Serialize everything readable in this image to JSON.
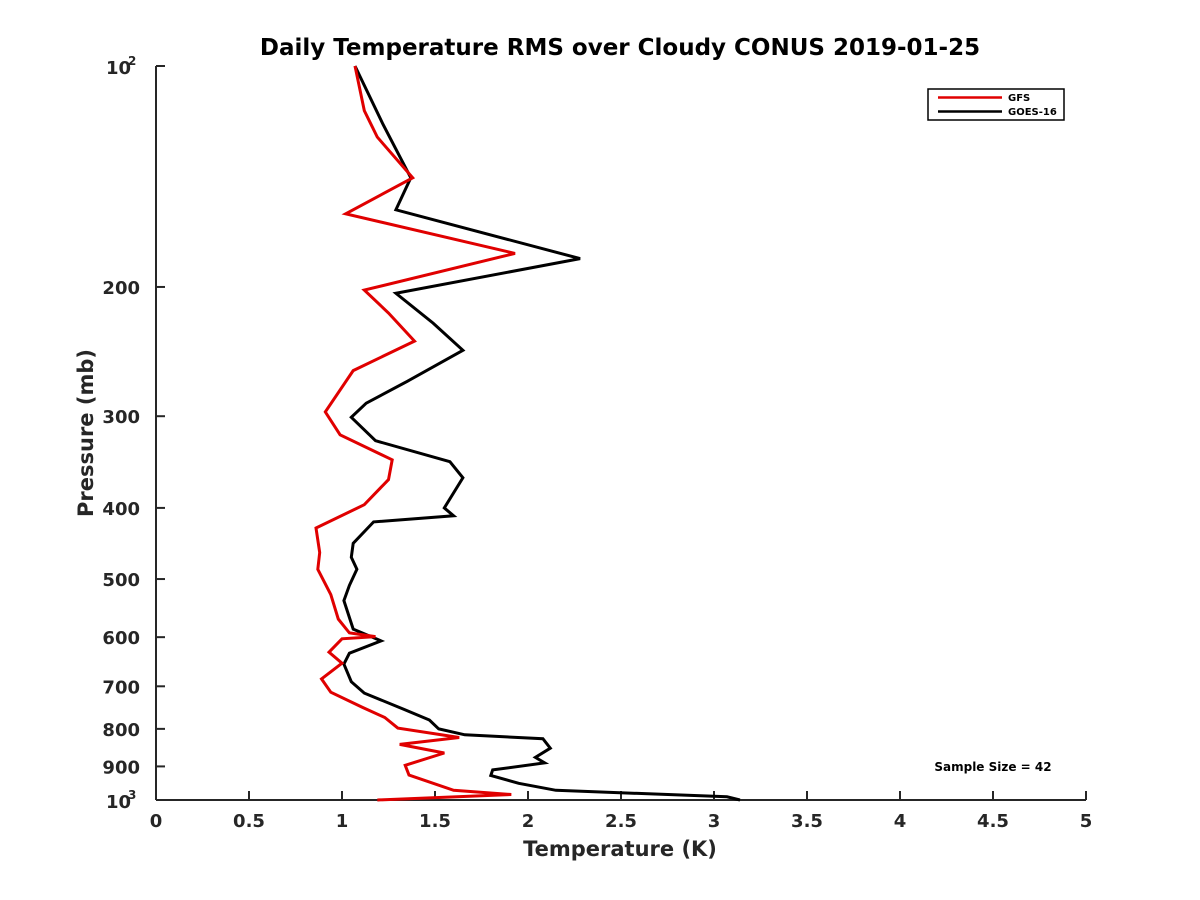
{
  "chart_data": {
    "type": "line",
    "title": "Daily Temperature RMS over Cloudy CONUS 2019-01-25",
    "xlabel": "Temperature (K)",
    "ylabel": "Pressure (mb)",
    "xlim": [
      0,
      5
    ],
    "ylim": [
      100,
      1000
    ],
    "y_scale": "log",
    "y_reversed": true,
    "grid": false,
    "legend_position": "top-right",
    "xticks": [
      "0",
      "0.5",
      "1",
      "1.5",
      "2",
      "2.5",
      "3",
      "3.5",
      "4",
      "4.5",
      "5"
    ],
    "yticks": [
      {
        "value": 100,
        "base": "10",
        "exp": "2"
      },
      {
        "value": 200,
        "label": "200"
      },
      {
        "value": 300,
        "label": "300"
      },
      {
        "value": 400,
        "label": "400"
      },
      {
        "value": 500,
        "label": "500"
      },
      {
        "value": 600,
        "label": "600"
      },
      {
        "value": 700,
        "label": "700"
      },
      {
        "value": 800,
        "label": "800"
      },
      {
        "value": 900,
        "label": "900"
      },
      {
        "value": 1000,
        "base": "10",
        "exp": "3"
      }
    ],
    "series": [
      {
        "name": "GFS",
        "color": "#e00000",
        "points": [
          [
            1.07,
            100
          ],
          [
            1.12,
            115
          ],
          [
            1.19,
            125
          ],
          [
            1.38,
            142
          ],
          [
            1.02,
            159
          ],
          [
            1.93,
            180
          ],
          [
            1.12,
            202
          ],
          [
            1.25,
            217
          ],
          [
            1.39,
            237
          ],
          [
            1.06,
            260
          ],
          [
            0.91,
            296
          ],
          [
            0.99,
            318
          ],
          [
            1.27,
            344
          ],
          [
            1.25,
            366
          ],
          [
            1.12,
            396
          ],
          [
            0.86,
            426
          ],
          [
            0.88,
            460
          ],
          [
            0.87,
            485
          ],
          [
            0.94,
            525
          ],
          [
            0.98,
            567
          ],
          [
            1.04,
            592
          ],
          [
            1.18,
            599
          ],
          [
            1.0,
            603
          ],
          [
            0.93,
            629
          ],
          [
            1.0,
            651
          ],
          [
            0.89,
            684
          ],
          [
            0.94,
            713
          ],
          [
            1.11,
            748
          ],
          [
            1.23,
            772
          ],
          [
            1.3,
            798
          ],
          [
            1.63,
            822
          ],
          [
            1.31,
            840
          ],
          [
            1.55,
            863
          ],
          [
            1.34,
            897
          ],
          [
            1.36,
            925
          ],
          [
            1.6,
            970
          ],
          [
            1.91,
            983
          ],
          [
            1.19,
            1000
          ]
        ]
      },
      {
        "name": "GOES-16",
        "color": "#000000",
        "points": [
          [
            1.07,
            100
          ],
          [
            1.22,
            120
          ],
          [
            1.37,
            142
          ],
          [
            1.29,
            157
          ],
          [
            2.28,
            183
          ],
          [
            1.29,
            204
          ],
          [
            1.49,
            224
          ],
          [
            1.65,
            244
          ],
          [
            1.35,
            269
          ],
          [
            1.13,
            288
          ],
          [
            1.05,
            301
          ],
          [
            1.18,
            324
          ],
          [
            1.58,
            346
          ],
          [
            1.65,
            364
          ],
          [
            1.55,
            400
          ],
          [
            1.6,
            410
          ],
          [
            1.17,
            418
          ],
          [
            1.06,
            447
          ],
          [
            1.05,
            467
          ],
          [
            1.08,
            485
          ],
          [
            1.04,
            510
          ],
          [
            1.01,
            535
          ],
          [
            1.06,
            585
          ],
          [
            1.21,
            607
          ],
          [
            1.04,
            631
          ],
          [
            1.01,
            653
          ],
          [
            1.05,
            690
          ],
          [
            1.12,
            715
          ],
          [
            1.33,
            752
          ],
          [
            1.47,
            778
          ],
          [
            1.52,
            800
          ],
          [
            1.66,
            815
          ],
          [
            2.08,
            825
          ],
          [
            2.12,
            850
          ],
          [
            2.04,
            875
          ],
          [
            2.09,
            890
          ],
          [
            1.81,
            910
          ],
          [
            1.8,
            926
          ],
          [
            1.95,
            949
          ],
          [
            2.15,
            970
          ],
          [
            3.07,
            990
          ],
          [
            3.14,
            1000
          ]
        ]
      }
    ],
    "annotation": "Sample Size = 42"
  }
}
